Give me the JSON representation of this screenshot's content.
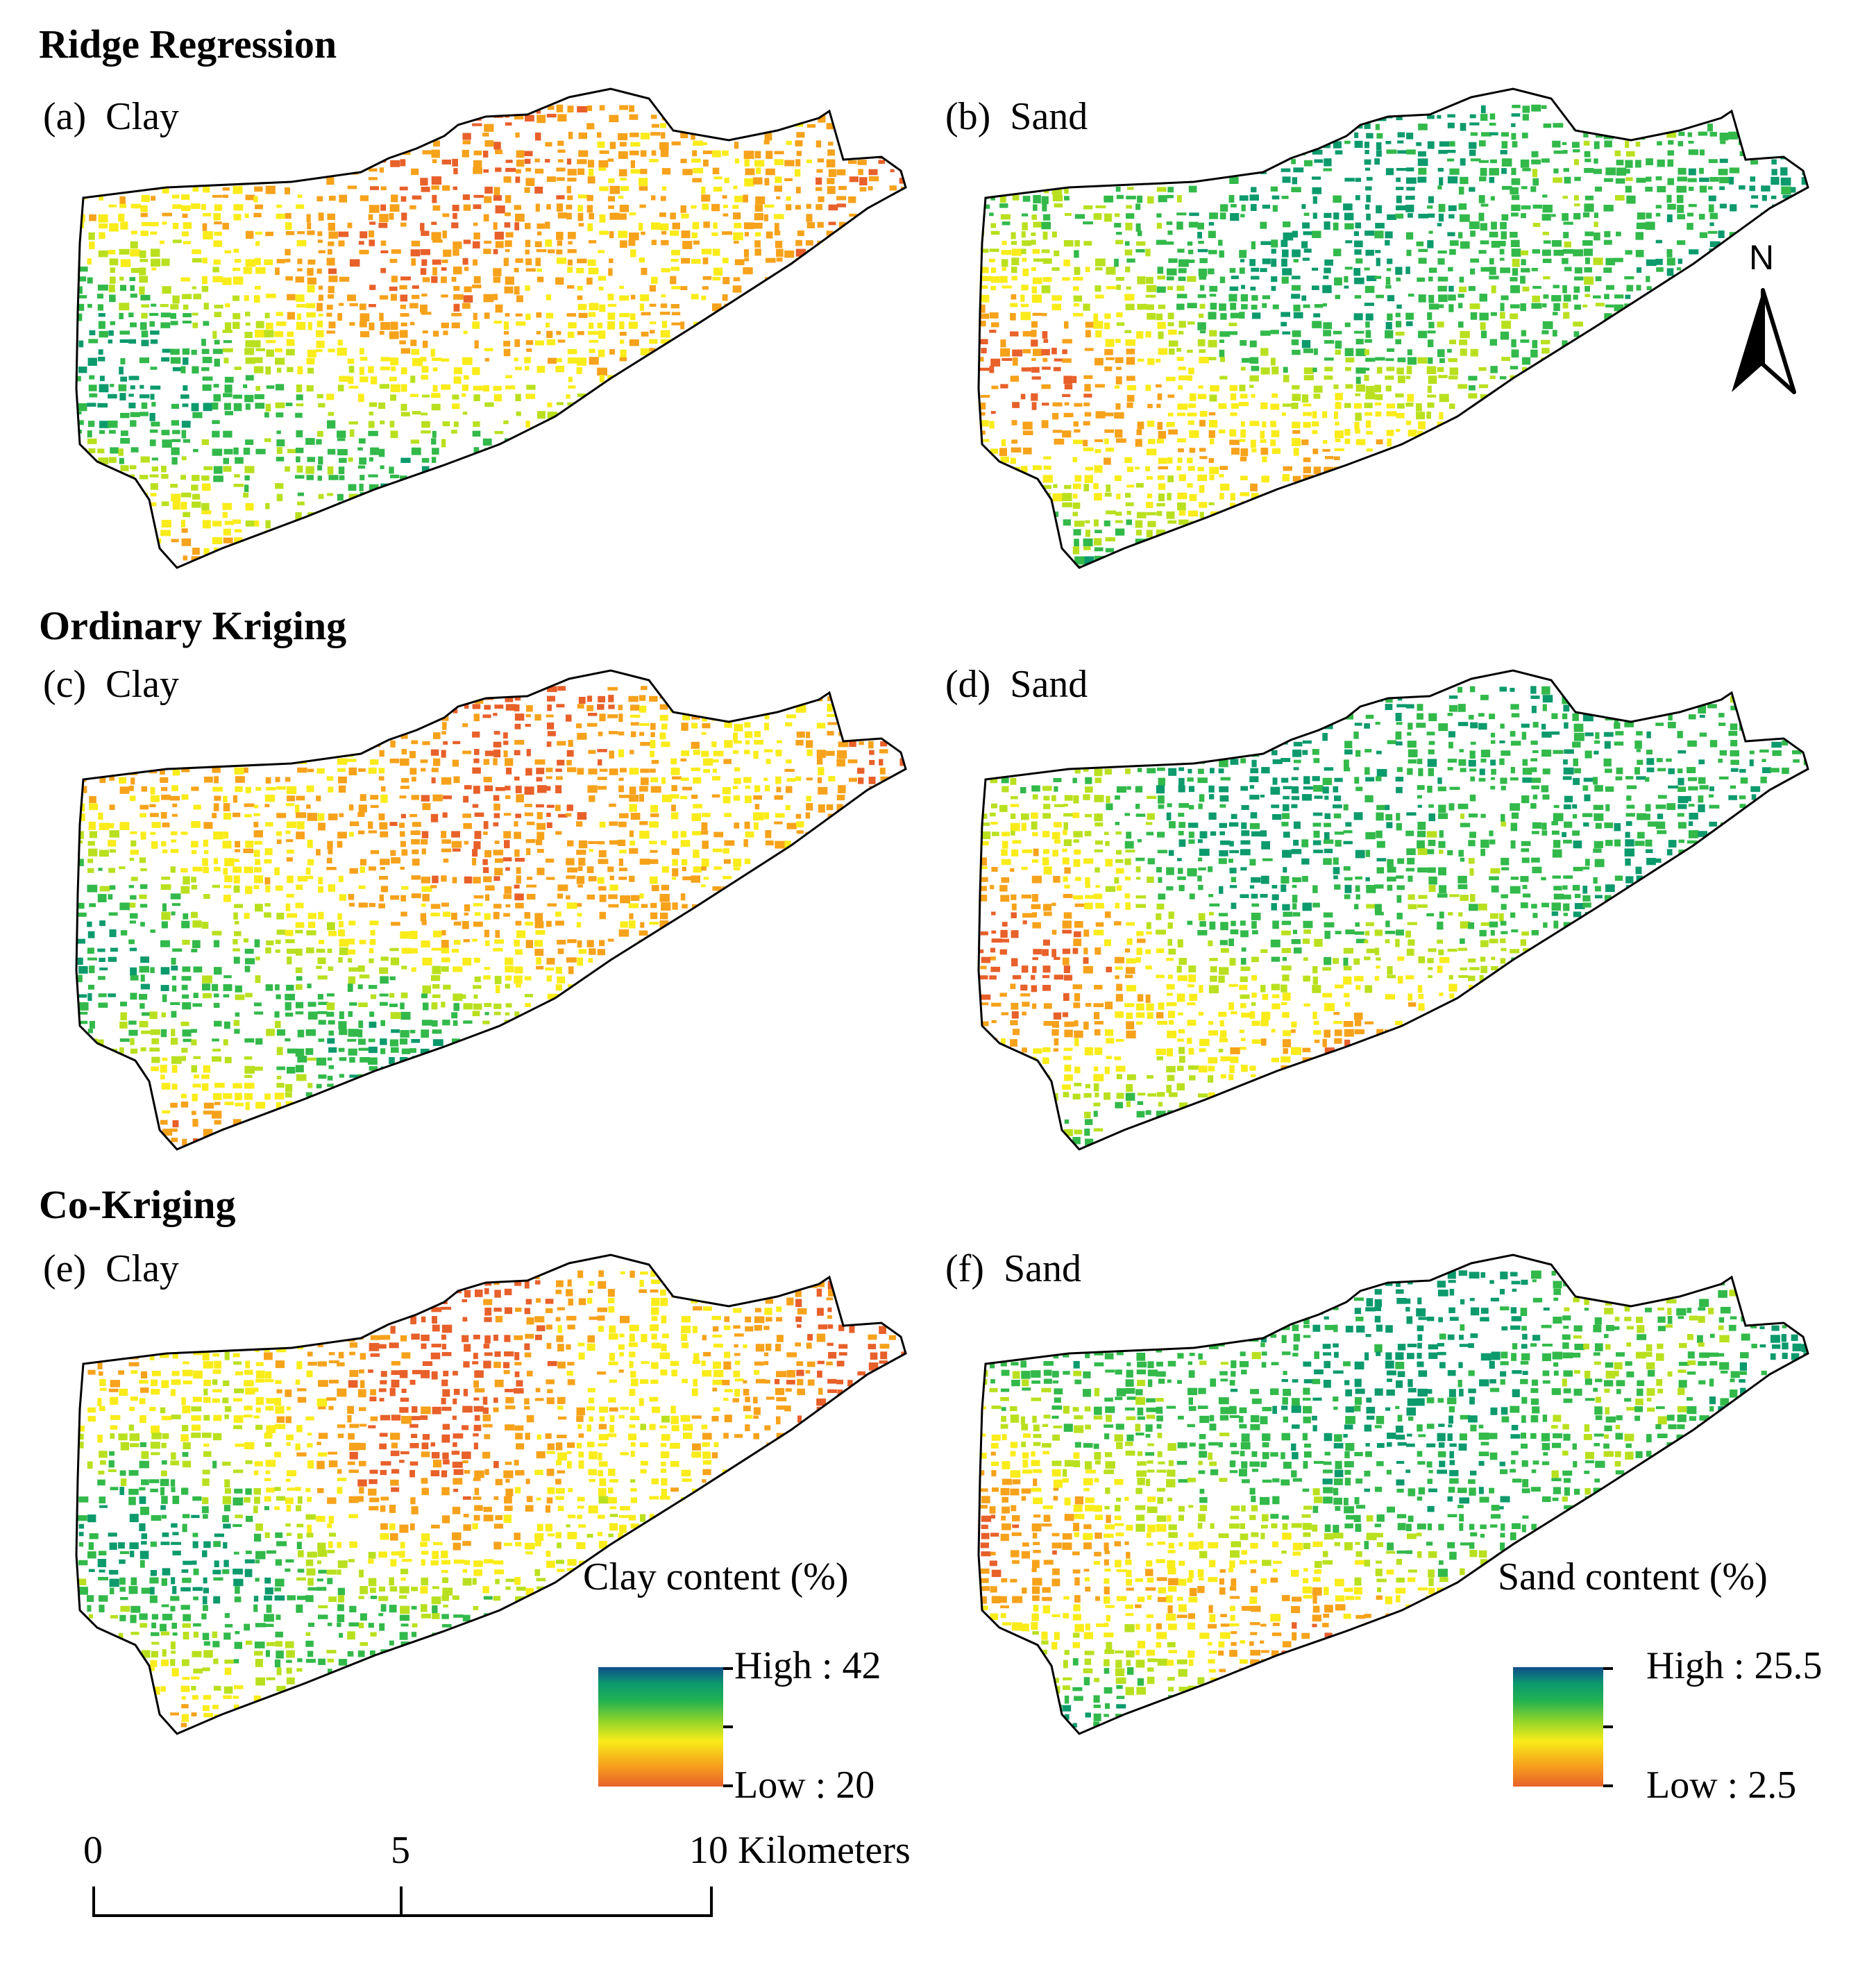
{
  "figure": {
    "sections": [
      {
        "title": "Ridge Regression",
        "panels": [
          {
            "label": "(a)  Clay",
            "variable": "clay"
          },
          {
            "label": "(b)  Sand",
            "variable": "sand"
          }
        ]
      },
      {
        "title": "Ordinary Kriging",
        "panels": [
          {
            "label": "(c)  Clay",
            "variable": "clay"
          },
          {
            "label": "(d)  Sand",
            "variable": "sand"
          }
        ]
      },
      {
        "title": "Co-Kriging",
        "panels": [
          {
            "label": "(e)  Clay",
            "variable": "clay"
          },
          {
            "label": "(f)  Sand",
            "variable": "sand"
          }
        ]
      }
    ],
    "legends": {
      "clay": {
        "title": "Clay content (%)",
        "high": "High : 42",
        "low": "Low : 20"
      },
      "sand": {
        "title": "Sand content (%)",
        "high": "High : 25.5",
        "low": "Low : 2.5"
      }
    },
    "colormap": [
      "#e8602a",
      "#f6a21b",
      "#f9ec1a",
      "#b9e01f",
      "#32b94a",
      "#0c9a6d",
      "#0e5d8f"
    ],
    "north_arrow": "N",
    "scale_bar": {
      "ticks": [
        "0",
        "5",
        "10"
      ],
      "unit": "Kilometers",
      "end_label": "10 Kilometers"
    }
  }
}
